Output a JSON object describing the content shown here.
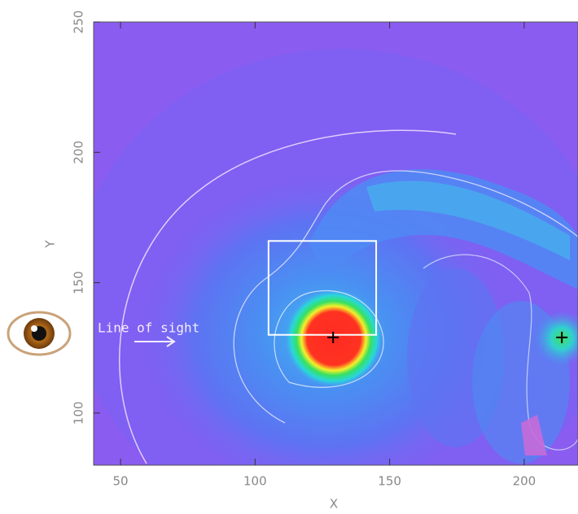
{
  "chart_data": {
    "type": "density-map",
    "x_label": "X",
    "y_label": "Y",
    "annotation": "Line of sight",
    "xlim": [
      40,
      220
    ],
    "ylim": [
      80,
      250
    ],
    "xticks": [
      50,
      100,
      150,
      200
    ],
    "yticks": [
      100,
      150,
      200,
      250
    ],
    "markers": {
      "x": [
        129,
        214
      ],
      "y": [
        129,
        129
      ]
    },
    "box": {
      "x": [
        105,
        145
      ],
      "y": [
        130,
        166
      ]
    }
  }
}
